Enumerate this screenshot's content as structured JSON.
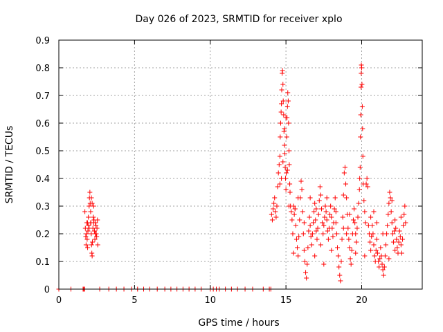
{
  "chart_data": {
    "type": "scatter",
    "title": "Day 026 of 2023, SRMTID for receiver xplo",
    "xlabel": "GPS time / hours",
    "ylabel": "SRMTID / TECUs",
    "xlim": [
      0,
      24
    ],
    "ylim": [
      0,
      0.9
    ],
    "xticks": [
      0,
      5,
      10,
      15,
      20
    ],
    "yticks": [
      0,
      0.1,
      0.2,
      0.3,
      0.4,
      0.5,
      0.6,
      0.7,
      0.8,
      0.9
    ],
    "ytick_labels": [
      "0",
      "0.1",
      "0.2",
      "0.3",
      "0.4",
      "0.5",
      "0.6",
      "0.7",
      "0.8",
      "0.9"
    ],
    "grid": true,
    "marker": "plus",
    "color": "#ff0000",
    "series": [
      {
        "name": "SRMTID",
        "points": [
          [
            0.0,
            0.0
          ],
          [
            0.8,
            0.0
          ],
          [
            1.6,
            0.0
          ],
          [
            1.65,
            0.0
          ],
          [
            1.7,
            0.0
          ],
          [
            2.7,
            0.0
          ],
          [
            3.3,
            0.0
          ],
          [
            3.8,
            0.0
          ],
          [
            4.3,
            0.0
          ],
          [
            4.8,
            0.0
          ],
          [
            5.2,
            0.0
          ],
          [
            5.6,
            0.0
          ],
          [
            6.0,
            0.0
          ],
          [
            6.5,
            0.0
          ],
          [
            7.0,
            0.0
          ],
          [
            7.4,
            0.0
          ],
          [
            7.8,
            0.0
          ],
          [
            8.2,
            0.0
          ],
          [
            8.6,
            0.0
          ],
          [
            9.0,
            0.0
          ],
          [
            9.4,
            0.0
          ],
          [
            10.0,
            0.0
          ],
          [
            10.2,
            0.0
          ],
          [
            10.4,
            0.0
          ],
          [
            10.6,
            0.0
          ],
          [
            11.0,
            0.0
          ],
          [
            11.4,
            0.0
          ],
          [
            11.8,
            0.0
          ],
          [
            12.3,
            0.0
          ],
          [
            12.8,
            0.0
          ],
          [
            13.5,
            0.0
          ],
          [
            13.9,
            0.0
          ],
          [
            14.0,
            0.0
          ],
          [
            1.72,
            0.28
          ],
          [
            1.75,
            0.22
          ],
          [
            1.78,
            0.19
          ],
          [
            1.8,
            0.16
          ],
          [
            1.82,
            0.2
          ],
          [
            1.85,
            0.24
          ],
          [
            1.87,
            0.18
          ],
          [
            1.9,
            0.15
          ],
          [
            1.92,
            0.21
          ],
          [
            1.95,
            0.26
          ],
          [
            1.97,
            0.23
          ],
          [
            2.0,
            0.3
          ],
          [
            2.02,
            0.33
          ],
          [
            2.05,
            0.35
          ],
          [
            2.07,
            0.31
          ],
          [
            2.1,
            0.28
          ],
          [
            2.12,
            0.24
          ],
          [
            2.14,
            0.2
          ],
          [
            2.16,
            0.16
          ],
          [
            2.18,
            0.13
          ],
          [
            2.2,
            0.12
          ],
          [
            2.22,
            0.17
          ],
          [
            2.25,
            0.22
          ],
          [
            2.28,
            0.26
          ],
          [
            2.3,
            0.3
          ],
          [
            2.32,
            0.25
          ],
          [
            2.35,
            0.21
          ],
          [
            2.38,
            0.18
          ],
          [
            2.4,
            0.2
          ],
          [
            2.42,
            0.24
          ],
          [
            2.45,
            0.23
          ],
          [
            2.47,
            0.2
          ],
          [
            2.5,
            0.19
          ],
          [
            2.52,
            0.22
          ],
          [
            2.55,
            0.25
          ],
          [
            2.57,
            0.16
          ],
          [
            1.9,
            0.24
          ],
          [
            2.0,
            0.22
          ],
          [
            2.1,
            0.24
          ],
          [
            2.2,
            0.31
          ],
          [
            2.3,
            0.24
          ],
          [
            2.15,
            0.33
          ],
          [
            14.05,
            0.27
          ],
          [
            14.1,
            0.25
          ],
          [
            14.15,
            0.29
          ],
          [
            14.2,
            0.31
          ],
          [
            14.25,
            0.33
          ],
          [
            14.3,
            0.28
          ],
          [
            14.35,
            0.26
          ],
          [
            14.4,
            0.3
          ],
          [
            14.45,
            0.37
          ],
          [
            14.5,
            0.42
          ],
          [
            14.55,
            0.45
          ],
          [
            14.6,
            0.48
          ],
          [
            14.62,
            0.55
          ],
          [
            14.65,
            0.6
          ],
          [
            14.68,
            0.64
          ],
          [
            14.7,
            0.67
          ],
          [
            14.72,
            0.72
          ],
          [
            14.75,
            0.78
          ],
          [
            14.77,
            0.79
          ],
          [
            14.8,
            0.74
          ],
          [
            14.82,
            0.68
          ],
          [
            14.85,
            0.63
          ],
          [
            14.87,
            0.57
          ],
          [
            14.9,
            0.52
          ],
          [
            14.92,
            0.49
          ],
          [
            14.95,
            0.44
          ],
          [
            14.97,
            0.4
          ],
          [
            15.0,
            0.36
          ],
          [
            15.02,
            0.42
          ],
          [
            15.05,
            0.55
          ],
          [
            15.07,
            0.62
          ],
          [
            15.1,
            0.66
          ],
          [
            15.12,
            0.71
          ],
          [
            15.15,
            0.68
          ],
          [
            15.17,
            0.6
          ],
          [
            15.2,
            0.5
          ],
          [
            15.22,
            0.45
          ],
          [
            15.25,
            0.38
          ],
          [
            15.27,
            0.35
          ],
          [
            15.3,
            0.3
          ],
          [
            14.6,
            0.38
          ],
          [
            14.7,
            0.4
          ],
          [
            14.8,
            0.46
          ],
          [
            14.9,
            0.58
          ],
          [
            15.0,
            0.62
          ],
          [
            15.1,
            0.43
          ],
          [
            15.35,
            0.28
          ],
          [
            15.4,
            0.25
          ],
          [
            15.45,
            0.2
          ],
          [
            15.5,
            0.3
          ],
          [
            15.55,
            0.27
          ],
          [
            15.6,
            0.29
          ],
          [
            15.65,
            0.23
          ],
          [
            15.7,
            0.18
          ],
          [
            15.75,
            0.15
          ],
          [
            15.8,
            0.12
          ],
          [
            15.85,
            0.19
          ],
          [
            15.9,
            0.25
          ],
          [
            15.95,
            0.33
          ],
          [
            16.0,
            0.39
          ],
          [
            16.05,
            0.36
          ],
          [
            16.1,
            0.28
          ],
          [
            16.15,
            0.2
          ],
          [
            16.2,
            0.14
          ],
          [
            16.25,
            0.1
          ],
          [
            16.3,
            0.06
          ],
          [
            16.35,
            0.04
          ],
          [
            16.4,
            0.09
          ],
          [
            16.45,
            0.15
          ],
          [
            16.5,
            0.21
          ],
          [
            16.55,
            0.26
          ],
          [
            16.6,
            0.23
          ],
          [
            16.65,
            0.19
          ],
          [
            16.7,
            0.16
          ],
          [
            16.75,
            0.2
          ],
          [
            16.8,
            0.24
          ],
          [
            16.85,
            0.28
          ],
          [
            16.9,
            0.31
          ],
          [
            16.95,
            0.25
          ],
          [
            17.0,
            0.21
          ],
          [
            17.05,
            0.18
          ],
          [
            17.1,
            0.22
          ],
          [
            17.15,
            0.27
          ],
          [
            17.2,
            0.32
          ],
          [
            17.25,
            0.37
          ],
          [
            17.3,
            0.34
          ],
          [
            17.35,
            0.29
          ],
          [
            17.4,
            0.24
          ],
          [
            17.45,
            0.2
          ],
          [
            17.5,
            0.23
          ],
          [
            17.55,
            0.26
          ],
          [
            17.6,
            0.3
          ],
          [
            17.65,
            0.28
          ],
          [
            17.7,
            0.25
          ],
          [
            17.75,
            0.21
          ],
          [
            17.8,
            0.18
          ],
          [
            17.85,
            0.22
          ],
          [
            17.9,
            0.27
          ],
          [
            17.95,
            0.3
          ],
          [
            18.0,
            0.26
          ],
          [
            18.05,
            0.22
          ],
          [
            18.1,
            0.19
          ],
          [
            18.15,
            0.24
          ],
          [
            18.2,
            0.29
          ],
          [
            18.25,
            0.33
          ],
          [
            18.3,
            0.28
          ],
          [
            18.35,
            0.2
          ],
          [
            18.4,
            0.15
          ],
          [
            18.45,
            0.12
          ],
          [
            18.5,
            0.08
          ],
          [
            18.55,
            0.05
          ],
          [
            18.6,
            0.03
          ],
          [
            18.65,
            0.1
          ],
          [
            18.7,
            0.18
          ],
          [
            18.75,
            0.26
          ],
          [
            18.8,
            0.34
          ],
          [
            18.85,
            0.42
          ],
          [
            18.9,
            0.44
          ],
          [
            18.95,
            0.38
          ],
          [
            19.0,
            0.33
          ],
          [
            19.05,
            0.27
          ],
          [
            19.1,
            0.22
          ],
          [
            19.15,
            0.18
          ],
          [
            19.2,
            0.15
          ],
          [
            19.25,
            0.11
          ],
          [
            19.3,
            0.09
          ],
          [
            19.35,
            0.14
          ],
          [
            19.4,
            0.2
          ],
          [
            19.45,
            0.25
          ],
          [
            19.5,
            0.29
          ],
          [
            19.55,
            0.24
          ],
          [
            19.6,
            0.2
          ],
          [
            19.65,
            0.17
          ],
          [
            19.7,
            0.22
          ],
          [
            19.75,
            0.26
          ],
          [
            19.8,
            0.31
          ],
          [
            19.85,
            0.36
          ],
          [
            19.87,
            0.4
          ],
          [
            19.9,
            0.44
          ],
          [
            19.92,
            0.55
          ],
          [
            19.94,
            0.63
          ],
          [
            19.96,
            0.73
          ],
          [
            19.97,
            0.78
          ],
          [
            19.98,
            0.81
          ],
          [
            20.0,
            0.8
          ],
          [
            20.02,
            0.74
          ],
          [
            20.04,
            0.66
          ],
          [
            20.06,
            0.58
          ],
          [
            20.08,
            0.48
          ],
          [
            20.1,
            0.38
          ],
          [
            20.15,
            0.32
          ],
          [
            20.2,
            0.28
          ],
          [
            20.25,
            0.24
          ],
          [
            20.3,
            0.38
          ],
          [
            20.35,
            0.4
          ],
          [
            20.4,
            0.37
          ],
          [
            20.45,
            0.23
          ],
          [
            20.5,
            0.2
          ],
          [
            20.55,
            0.17
          ],
          [
            20.6,
            0.14
          ],
          [
            20.65,
            0.19
          ],
          [
            20.7,
            0.23
          ],
          [
            20.75,
            0.2
          ],
          [
            20.8,
            0.16
          ],
          [
            20.85,
            0.12
          ],
          [
            20.9,
            0.1
          ],
          [
            20.95,
            0.14
          ],
          [
            21.0,
            0.18
          ],
          [
            21.05,
            0.13
          ],
          [
            21.1,
            0.1
          ],
          [
            21.15,
            0.08
          ],
          [
            21.2,
            0.11
          ],
          [
            21.25,
            0.15
          ],
          [
            21.3,
            0.12
          ],
          [
            21.35,
            0.09
          ],
          [
            21.4,
            0.07
          ],
          [
            21.45,
            0.05
          ],
          [
            21.5,
            0.08
          ],
          [
            21.55,
            0.12
          ],
          [
            21.6,
            0.16
          ],
          [
            21.65,
            0.2
          ],
          [
            21.7,
            0.23
          ],
          [
            21.75,
            0.27
          ],
          [
            21.8,
            0.31
          ],
          [
            21.85,
            0.35
          ],
          [
            21.9,
            0.33
          ],
          [
            21.95,
            0.28
          ],
          [
            22.0,
            0.24
          ],
          [
            22.05,
            0.2
          ],
          [
            22.1,
            0.17
          ],
          [
            22.15,
            0.21
          ],
          [
            22.2,
            0.25
          ],
          [
            22.25,
            0.22
          ],
          [
            22.3,
            0.18
          ],
          [
            22.35,
            0.15
          ],
          [
            22.4,
            0.13
          ],
          [
            22.45,
            0.17
          ],
          [
            22.5,
            0.21
          ],
          [
            22.55,
            0.19
          ],
          [
            22.6,
            0.16
          ],
          [
            22.65,
            0.13
          ],
          [
            22.7,
            0.18
          ],
          [
            22.75,
            0.23
          ],
          [
            22.8,
            0.27
          ],
          [
            22.85,
            0.3
          ],
          [
            22.9,
            0.24
          ],
          [
            15.5,
            0.13
          ],
          [
            15.8,
            0.33
          ],
          [
            16.2,
            0.24
          ],
          [
            16.6,
            0.33
          ],
          [
            17.0,
            0.29
          ],
          [
            17.3,
            0.16
          ],
          [
            17.7,
            0.33
          ],
          [
            18.0,
            0.14
          ],
          [
            18.3,
            0.24
          ],
          [
            18.8,
            0.22
          ],
          [
            19.2,
            0.27
          ],
          [
            19.6,
            0.13
          ],
          [
            20.2,
            0.12
          ],
          [
            20.6,
            0.26
          ],
          [
            21.0,
            0.24
          ],
          [
            21.4,
            0.2
          ],
          [
            21.8,
            0.11
          ],
          [
            22.2,
            0.14
          ],
          [
            22.6,
            0.26
          ],
          [
            15.2,
            0.3
          ],
          [
            15.6,
            0.29
          ],
          [
            16.9,
            0.12
          ],
          [
            17.5,
            0.09
          ],
          [
            19.0,
            0.2
          ],
          [
            20.8,
            0.28
          ],
          [
            22.0,
            0.32
          ]
        ]
      }
    ]
  }
}
